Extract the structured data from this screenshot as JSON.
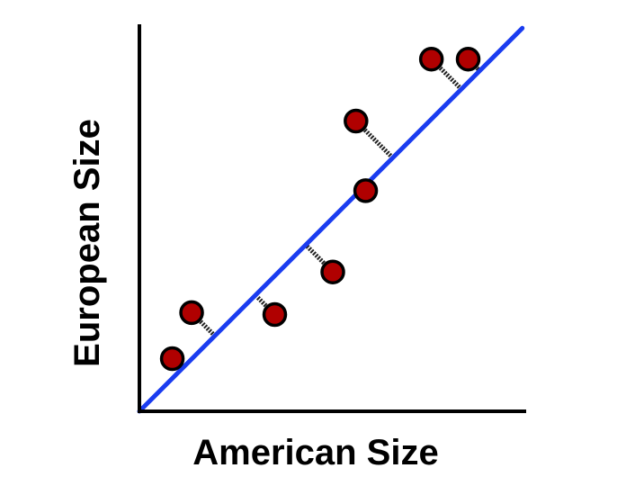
{
  "chart_data": {
    "type": "scatter",
    "xlabel": "American Size",
    "ylabel": "European Size",
    "ticks": "none",
    "grid": false,
    "xlim": [
      0,
      10
    ],
    "ylim": [
      0,
      10
    ],
    "points": [
      {
        "x": 0.85,
        "y": 1.36
      },
      {
        "x": 1.35,
        "y": 2.55
      },
      {
        "x": 3.5,
        "y": 2.5
      },
      {
        "x": 5.0,
        "y": 3.6
      },
      {
        "x": 5.85,
        "y": 5.7
      },
      {
        "x": 5.6,
        "y": 7.5
      },
      {
        "x": 7.55,
        "y": 9.1
      },
      {
        "x": 8.5,
        "y": 9.1
      }
    ],
    "fit_line": {
      "start": [
        0,
        0
      ],
      "end": [
        9.9,
        9.9
      ]
    },
    "residual_style": "dashed",
    "colors": {
      "points": "#b00000",
      "point_outline": "#000000",
      "fit_line": "#1a3cf0",
      "axes": "#000000",
      "residuals": "#222222"
    }
  }
}
